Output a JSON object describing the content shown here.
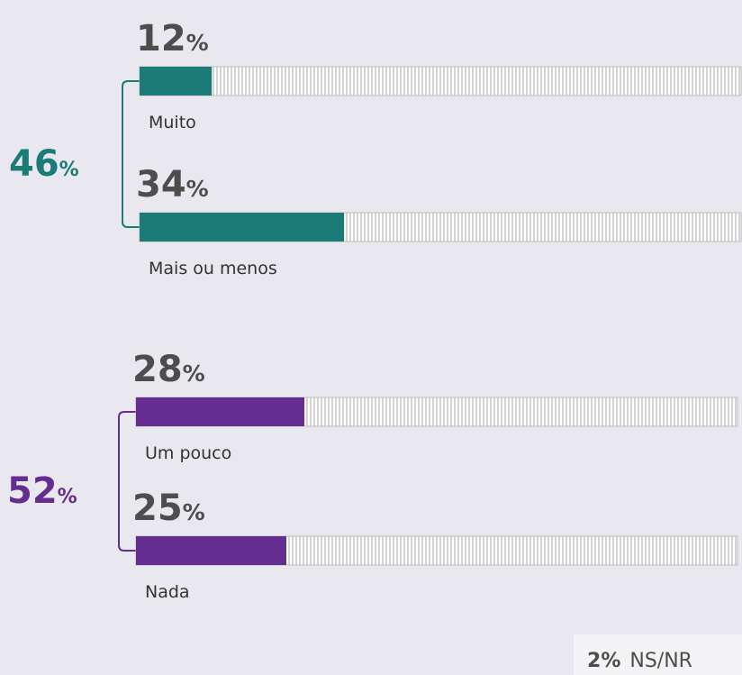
{
  "chart_data": {
    "type": "bar",
    "unit": "%",
    "xlim": [
      0,
      100
    ],
    "groups": [
      {
        "total": 46,
        "color": "#1b7b76",
        "categories": [
          "Muito",
          "Mais ou menos"
        ],
        "values": [
          12,
          34
        ]
      },
      {
        "total": 52,
        "color": "#662d91",
        "categories": [
          "Um pouco",
          "Nada"
        ],
        "values": [
          28,
          25
        ]
      }
    ],
    "other": {
      "value": 2,
      "label": "NS/NR"
    }
  }
}
